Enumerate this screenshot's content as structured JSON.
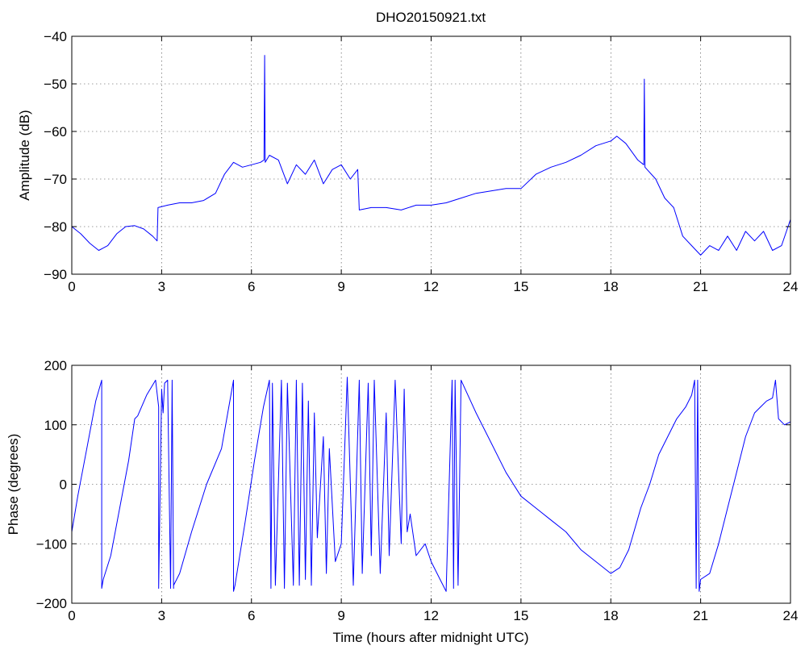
{
  "title": "DHO20150921.txt",
  "chart_data": [
    {
      "type": "line",
      "title": "DHO20150921.txt",
      "xlabel": "",
      "ylabel": "Amplitude (dB)",
      "xlim": [
        0,
        24
      ],
      "ylim": [
        -90,
        -40
      ],
      "xticks": [
        0,
        3,
        6,
        9,
        12,
        15,
        18,
        21,
        24
      ],
      "yticks": [
        -90,
        -80,
        -70,
        -60,
        -50,
        -40
      ],
      "xtick_labels": [
        "0",
        "3",
        "6",
        "9",
        "12",
        "15",
        "18",
        "21",
        "24"
      ],
      "ytick_labels": [
        "−90",
        "−80",
        "−70",
        "−60",
        "−50",
        "−40"
      ],
      "grid": true,
      "color": "#0000ff",
      "series": [
        {
          "x": [
            0,
            0.3,
            0.6,
            0.9,
            1.2,
            1.5,
            1.8,
            2.1,
            2.4,
            2.7,
            2.85,
            2.88,
            3.2,
            3.6,
            4.0,
            4.4,
            4.8,
            5.1,
            5.4,
            5.7,
            6.0,
            6.3,
            6.42,
            6.44,
            6.46,
            6.6,
            6.9,
            7.2,
            7.5,
            7.8,
            8.1,
            8.4,
            8.7,
            9.0,
            9.3,
            9.55,
            9.6,
            10.0,
            10.5,
            11.0,
            11.5,
            12.0,
            12.5,
            13.0,
            13.5,
            14.0,
            14.5,
            15.0,
            15.5,
            16.0,
            16.5,
            17.0,
            17.5,
            18.0,
            18.2,
            18.5,
            18.9,
            19.1,
            19.12,
            19.14,
            19.5,
            19.8,
            20.1,
            20.4,
            20.7,
            21.0,
            21.3,
            21.6,
            21.9,
            22.2,
            22.5,
            22.8,
            23.1,
            23.4,
            23.7,
            24.0
          ],
          "y": [
            -80,
            -81.5,
            -83.5,
            -85,
            -84,
            -81.5,
            -80,
            -79.8,
            -80.5,
            -82,
            -83,
            -76,
            -75.5,
            -75,
            -75,
            -74.5,
            -73,
            -69,
            -66.5,
            -67.5,
            -67,
            -66.5,
            -66,
            -44,
            -66.5,
            -65,
            -66,
            -71,
            -67,
            -69,
            -66,
            -71,
            -68,
            -67,
            -70,
            -68,
            -76.5,
            -76,
            -76,
            -76.5,
            -75.5,
            -75.5,
            -75,
            -74,
            -73,
            -72.5,
            -72,
            -72,
            -69,
            -67.5,
            -66.5,
            -65,
            -63,
            -62,
            -61,
            -62.5,
            -66,
            -67,
            -49,
            -67.5,
            -70,
            -74,
            -76,
            -82,
            -84,
            -86,
            -84,
            -85,
            -82,
            -85,
            -81,
            -83,
            -81,
            -85,
            -84,
            -78.5
          ]
        }
      ]
    },
    {
      "type": "line",
      "title": "",
      "xlabel": "Time (hours after midnight UTC)",
      "ylabel": "Phase (degrees)",
      "xlim": [
        0,
        24
      ],
      "ylim": [
        -200,
        200
      ],
      "xticks": [
        0,
        3,
        6,
        9,
        12,
        15,
        18,
        21,
        24
      ],
      "yticks": [
        -200,
        -100,
        0,
        100,
        200
      ],
      "xtick_labels": [
        "0",
        "3",
        "6",
        "9",
        "12",
        "15",
        "18",
        "21",
        "24"
      ],
      "ytick_labels": [
        "−200",
        "−100",
        "0",
        "100",
        "200"
      ],
      "grid": true,
      "color": "#0000ff",
      "series": [
        {
          "x": [
            0,
            0.2,
            0.5,
            0.8,
            1.0,
            1.0,
            1.05,
            1.3,
            1.6,
            1.9,
            2.1,
            2.2,
            2.5,
            2.8,
            2.9,
            2.9,
            3.0,
            3.05,
            3.1,
            3.2,
            3.3,
            3.35,
            3.4,
            3.4,
            3.6,
            4.0,
            4.5,
            5.0,
            5.4,
            5.4,
            5.45,
            5.8,
            6.1,
            6.4,
            6.6,
            6.65,
            6.7,
            6.8,
            7.0,
            7.1,
            7.2,
            7.4,
            7.5,
            7.6,
            7.7,
            7.8,
            7.9,
            8.0,
            8.1,
            8.2,
            8.4,
            8.5,
            8.6,
            8.8,
            9.0,
            9.2,
            9.4,
            9.6,
            9.7,
            9.9,
            10.0,
            10.1,
            10.3,
            10.5,
            10.6,
            10.8,
            11.0,
            11.1,
            11.2,
            11.3,
            11.5,
            11.8,
            12.0,
            12.3,
            12.5,
            12.7,
            12.75,
            12.8,
            12.9,
            13.0,
            13.5,
            14.0,
            14.5,
            15.0,
            15.5,
            16.0,
            16.5,
            17.0,
            17.5,
            18.0,
            18.3,
            18.6,
            19.0,
            19.3,
            19.6,
            19.9,
            20.2,
            20.5,
            20.7,
            20.8,
            20.85,
            20.9,
            20.95,
            21.0,
            21.3,
            21.6,
            21.9,
            22.2,
            22.5,
            22.8,
            23.0,
            23.2,
            23.4,
            23.5,
            23.6,
            23.8,
            24.0
          ],
          "y": [
            -80,
            -20,
            60,
            140,
            175,
            -175,
            -160,
            -120,
            -40,
            40,
            110,
            115,
            150,
            175,
            130,
            -175,
            160,
            120,
            170,
            175,
            -175,
            175,
            -175,
            -170,
            -150,
            -80,
            0,
            60,
            175,
            -180,
            -170,
            -60,
            40,
            130,
            175,
            -175,
            170,
            -170,
            175,
            -175,
            170,
            -170,
            175,
            -170,
            170,
            -160,
            140,
            -170,
            120,
            -90,
            80,
            -150,
            60,
            -130,
            -100,
            180,
            -170,
            175,
            -150,
            170,
            -120,
            175,
            -150,
            120,
            -120,
            175,
            -100,
            160,
            -80,
            -50,
            -120,
            -100,
            -130,
            -160,
            -180,
            175,
            -175,
            175,
            -170,
            175,
            120,
            70,
            20,
            -20,
            -40,
            -60,
            -80,
            -110,
            -130,
            -150,
            -140,
            -110,
            -40,
            0,
            50,
            80,
            110,
            130,
            150,
            175,
            -175,
            175,
            -180,
            -160,
            -150,
            -100,
            -40,
            20,
            80,
            120,
            130,
            140,
            145,
            175,
            110,
            100,
            105
          ]
        }
      ]
    }
  ]
}
